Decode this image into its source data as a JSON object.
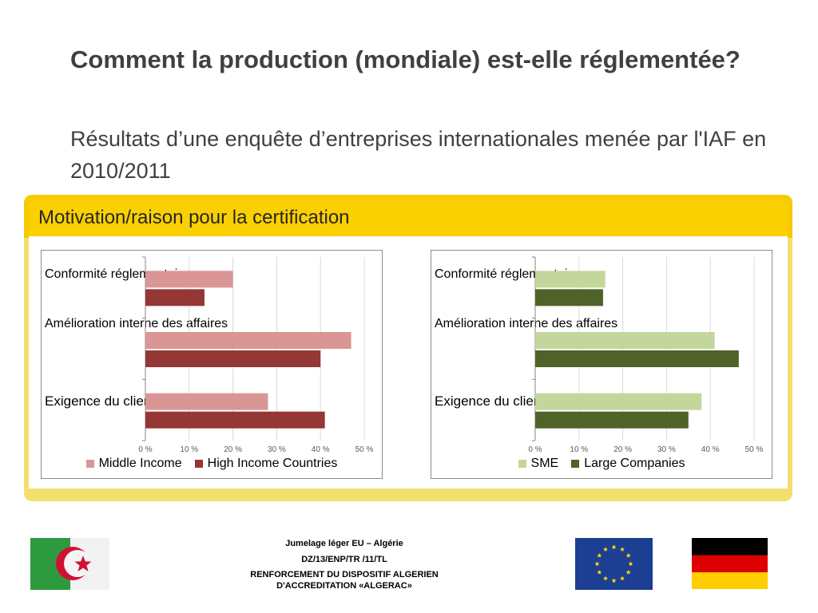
{
  "slide": {
    "title": "Comment la production (mondiale) est-elle réglementée?",
    "subtitle": "Résultats d’une enquête d’entreprises internationales menée par l'IAF en 2010/2011",
    "panel_title": "Motivation/raison pour la certification"
  },
  "chart_data": [
    {
      "type": "bar",
      "orientation": "horizontal",
      "categories": [
        "Conformité réglementaire",
        "Amélioration interne des affaires",
        "Exigence du client"
      ],
      "series": [
        {
          "name": "Middle Income",
          "values": [
            20,
            47,
            28
          ],
          "color": "#d99694"
        },
        {
          "name": "High Income Countries",
          "values": [
            13.5,
            40,
            41
          ],
          "color": "#953735"
        }
      ],
      "xlim": [
        0,
        50
      ],
      "x_ticks": [
        "0 %",
        "10 %",
        "20 %",
        "30 %",
        "40 %",
        "50 %"
      ],
      "grid": true,
      "legend_position": "bottom"
    },
    {
      "type": "bar",
      "orientation": "horizontal",
      "categories": [
        "Conformité réglementaire",
        "Amélioration interne des affaires",
        "Exigence du client"
      ],
      "series": [
        {
          "name": "SME",
          "values": [
            16,
            41,
            38
          ],
          "color": "#c3d69b"
        },
        {
          "name": "Large Companies",
          "values": [
            15.5,
            46.5,
            35
          ],
          "color": "#4f6228"
        }
      ],
      "xlim": [
        0,
        50
      ],
      "x_ticks": [
        "0 %",
        "10 %",
        "20 %",
        "30 %",
        "40 %",
        "50 %"
      ],
      "grid": true,
      "legend_position": "bottom"
    }
  ],
  "footer": {
    "line1": "Jumelage léger EU – Algérie",
    "line2": "DZ/13/ENP/TR /11/TL",
    "line3": "RENFORCEMENT DU  DISPOSITIF ALGERIEN",
    "line4": "D'ACCREDITATION «ALGERAC»"
  },
  "icons": {
    "left_flag": "algeria-flag-icon",
    "eu_flag": "eu-flag-icon",
    "right_flag": "germany-flag-icon"
  }
}
